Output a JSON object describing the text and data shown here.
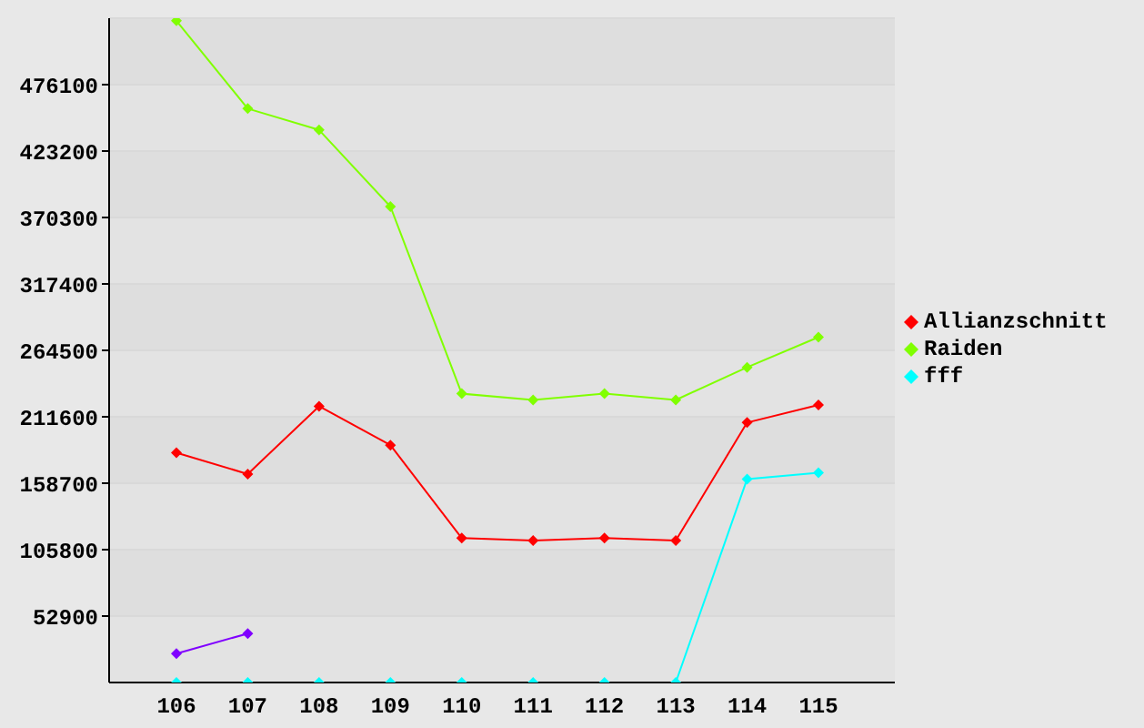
{
  "chart_data": {
    "type": "line",
    "categories": [
      "106",
      "107",
      "108",
      "109",
      "110",
      "111",
      "112",
      "113",
      "114",
      "115"
    ],
    "series": [
      {
        "name": "Allianzschnitt",
        "color": "#ff0000",
        "values": [
          183000,
          166000,
          220000,
          189000,
          115000,
          113000,
          115000,
          113000,
          207000,
          221000
        ]
      },
      {
        "name": "Raiden",
        "color": "#80ff00",
        "values": [
          527000,
          457000,
          440000,
          379000,
          230000,
          225000,
          230000,
          225000,
          251000,
          275000
        ]
      },
      {
        "name": "fff",
        "color": "#00ffff",
        "values": [
          0,
          0,
          0,
          0,
          0,
          0,
          0,
          0,
          162000,
          167000
        ]
      },
      {
        "color": "#8000ff",
        "values": [
          23000,
          39000,
          null,
          null,
          null,
          null,
          null,
          null,
          null,
          null
        ]
      }
    ],
    "ylim": [
      0,
      529000
    ],
    "yticks": [
      52900,
      105800,
      158700,
      211600,
      264500,
      317400,
      370300,
      423200,
      476100
    ],
    "grid": "y",
    "legend": "right",
    "marker": "diamond",
    "line_style": "solid"
  }
}
